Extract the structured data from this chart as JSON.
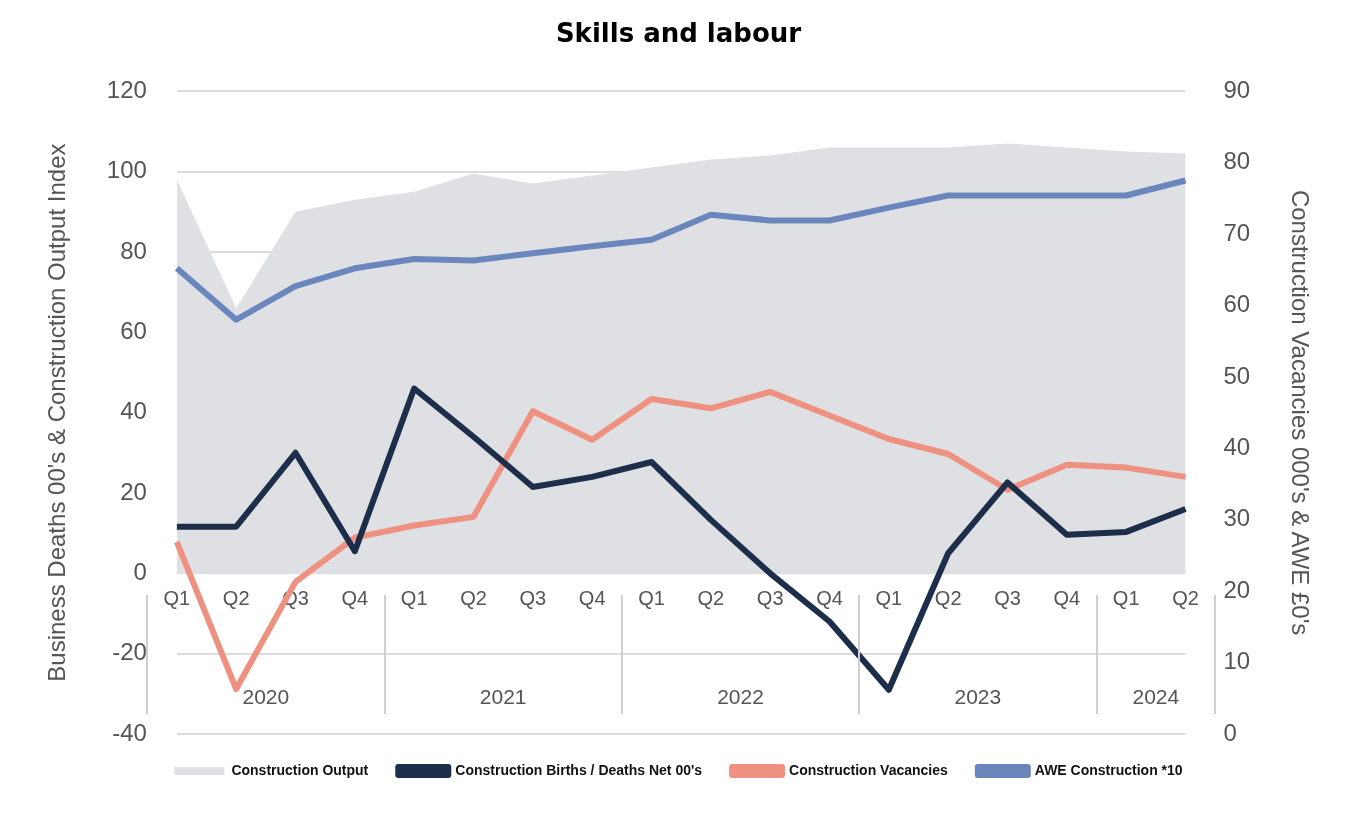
{
  "chart_data": {
    "type": "line",
    "title": "Skills and labour",
    "ylabel": "Business Deaths 00's & Construction Output Index",
    "y2label": "Construction Vacancies 000's & AWE £0's",
    "categories": [
      "Q1",
      "Q2",
      "Q3",
      "Q4",
      "Q1",
      "Q2",
      "Q3",
      "Q4",
      "Q1",
      "Q2",
      "Q3",
      "Q4",
      "Q1",
      "Q2",
      "Q3",
      "Q4",
      "Q1",
      "Q2"
    ],
    "annotations": [
      "2020",
      "2021",
      "2022",
      "2023",
      "2024"
    ],
    "series": [
      {
        "name": "Construction Output",
        "type": "area",
        "color": "#dfe0e4",
        "values": [
          98,
          66,
          90,
          93,
          95,
          99.5,
          97,
          99,
          101,
          103,
          104,
          106,
          106,
          106,
          107,
          106,
          105,
          104.5
        ]
      },
      {
        "name": "Construction Births / Deaths Net 00's",
        "color": "#1c2e4a",
        "values": [
          11.6,
          11.6,
          30,
          5.5,
          46,
          34,
          21.5,
          24,
          27.7,
          13.3,
          0,
          -12,
          -29,
          5,
          22.6,
          9.6,
          10.3,
          16
        ]
      },
      {
        "name": "Construction Vacancies",
        "color": "#ee9181",
        "axis": "y2",
        "values": [
          26.9,
          6.3,
          21.3,
          27.5,
          29.2,
          30.4,
          45.2,
          41.2,
          46.9,
          45.6,
          47.9,
          44.6,
          41.3,
          39.2,
          34.2,
          37.7,
          37.3,
          36
        ]
      },
      {
        "name": "AWE Construction *10",
        "color": "#6a86bd",
        "axis": "y2",
        "values": [
          65.2,
          58,
          62.7,
          65.2,
          66.5,
          66.3,
          67.3,
          68.3,
          69.2,
          72.7,
          71.9,
          71.9,
          73.7,
          75.4,
          75.4,
          75.4,
          75.4,
          77.5
        ]
      }
    ],
    "ylim": [
      -40,
      120
    ],
    "yticks": [
      -40,
      -20,
      0,
      20,
      40,
      60,
      80,
      100,
      120
    ],
    "y2lim": [
      0,
      90
    ],
    "y2ticks": [
      0,
      10,
      20,
      30,
      40,
      50,
      60,
      70,
      80,
      90
    ],
    "grid": "y",
    "legend": "bottom",
    "marker": "none"
  }
}
